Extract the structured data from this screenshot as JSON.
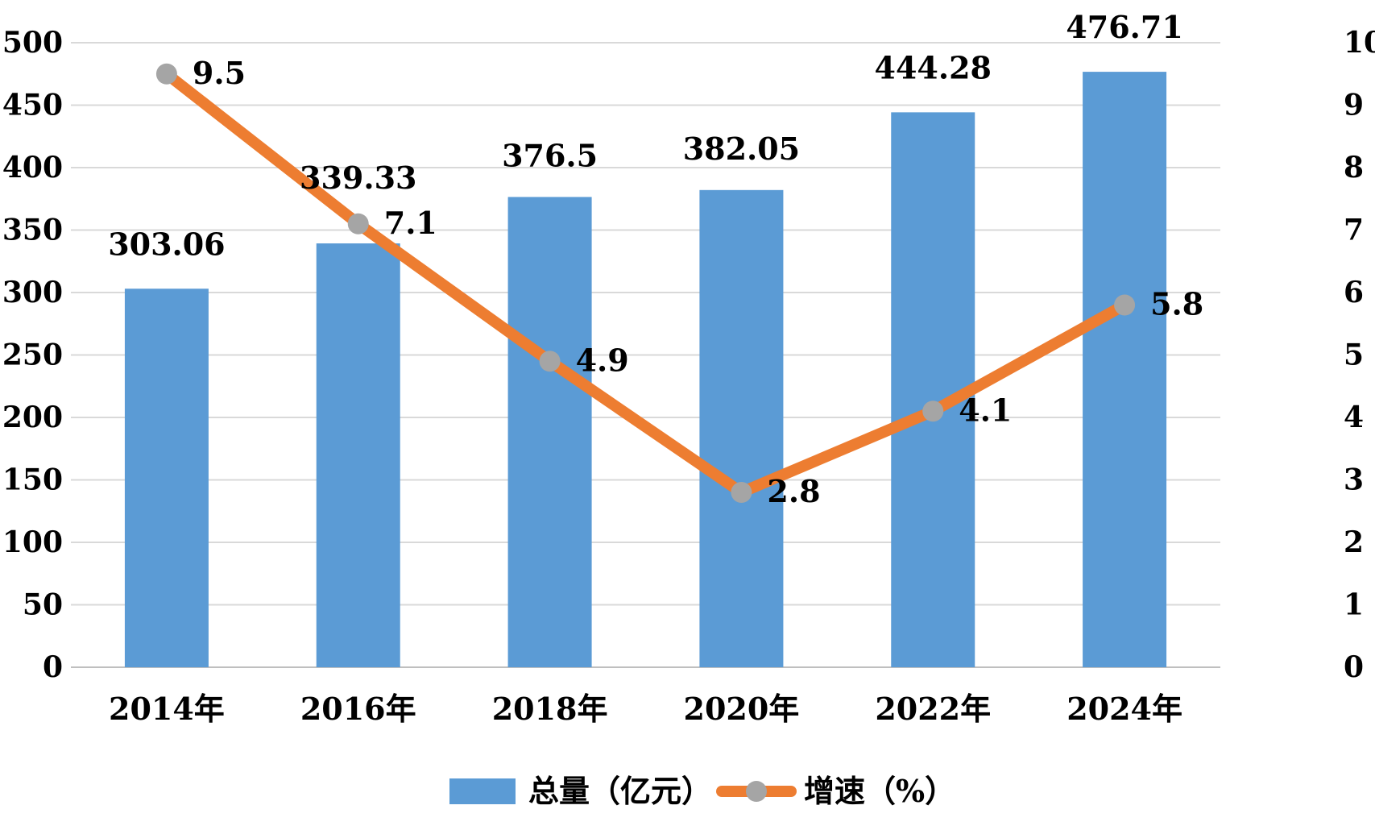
{
  "chart_data": {
    "type": "bar",
    "categories": [
      "2014年",
      "2016年",
      "2018年",
      "2020年",
      "2022年",
      "2024年"
    ],
    "series": [
      {
        "name": "总量（亿元）",
        "type": "bar",
        "axis": "left",
        "color": "#5b9bd5",
        "values": [
          303.06,
          339.33,
          376.5,
          382.05,
          444.28,
          476.71
        ],
        "labels": [
          "303.06",
          "339.33",
          "376.5",
          "382.05",
          "444.28",
          "476.71"
        ]
      },
      {
        "name": "增速（%）",
        "type": "line",
        "axis": "right",
        "color": "#ed7d31",
        "marker_color": "#a5a5a5",
        "values": [
          9.5,
          7.1,
          4.9,
          2.8,
          4.1,
          5.8
        ],
        "labels": [
          "9.5",
          "7.1",
          "4.9",
          "2.8",
          "4.1",
          "5.8"
        ]
      }
    ],
    "y_left": {
      "range": [
        0,
        500
      ],
      "ticks": [
        "0",
        "50",
        "100",
        "150",
        "200",
        "250",
        "300",
        "350",
        "400",
        "450",
        "500"
      ]
    },
    "y_right": {
      "range": [
        0,
        10
      ],
      "ticks": [
        "0",
        "1",
        "2",
        "3",
        "4",
        "5",
        "6",
        "7",
        "8",
        "9",
        "10"
      ]
    },
    "grid": true,
    "legend": "bottom-center"
  }
}
